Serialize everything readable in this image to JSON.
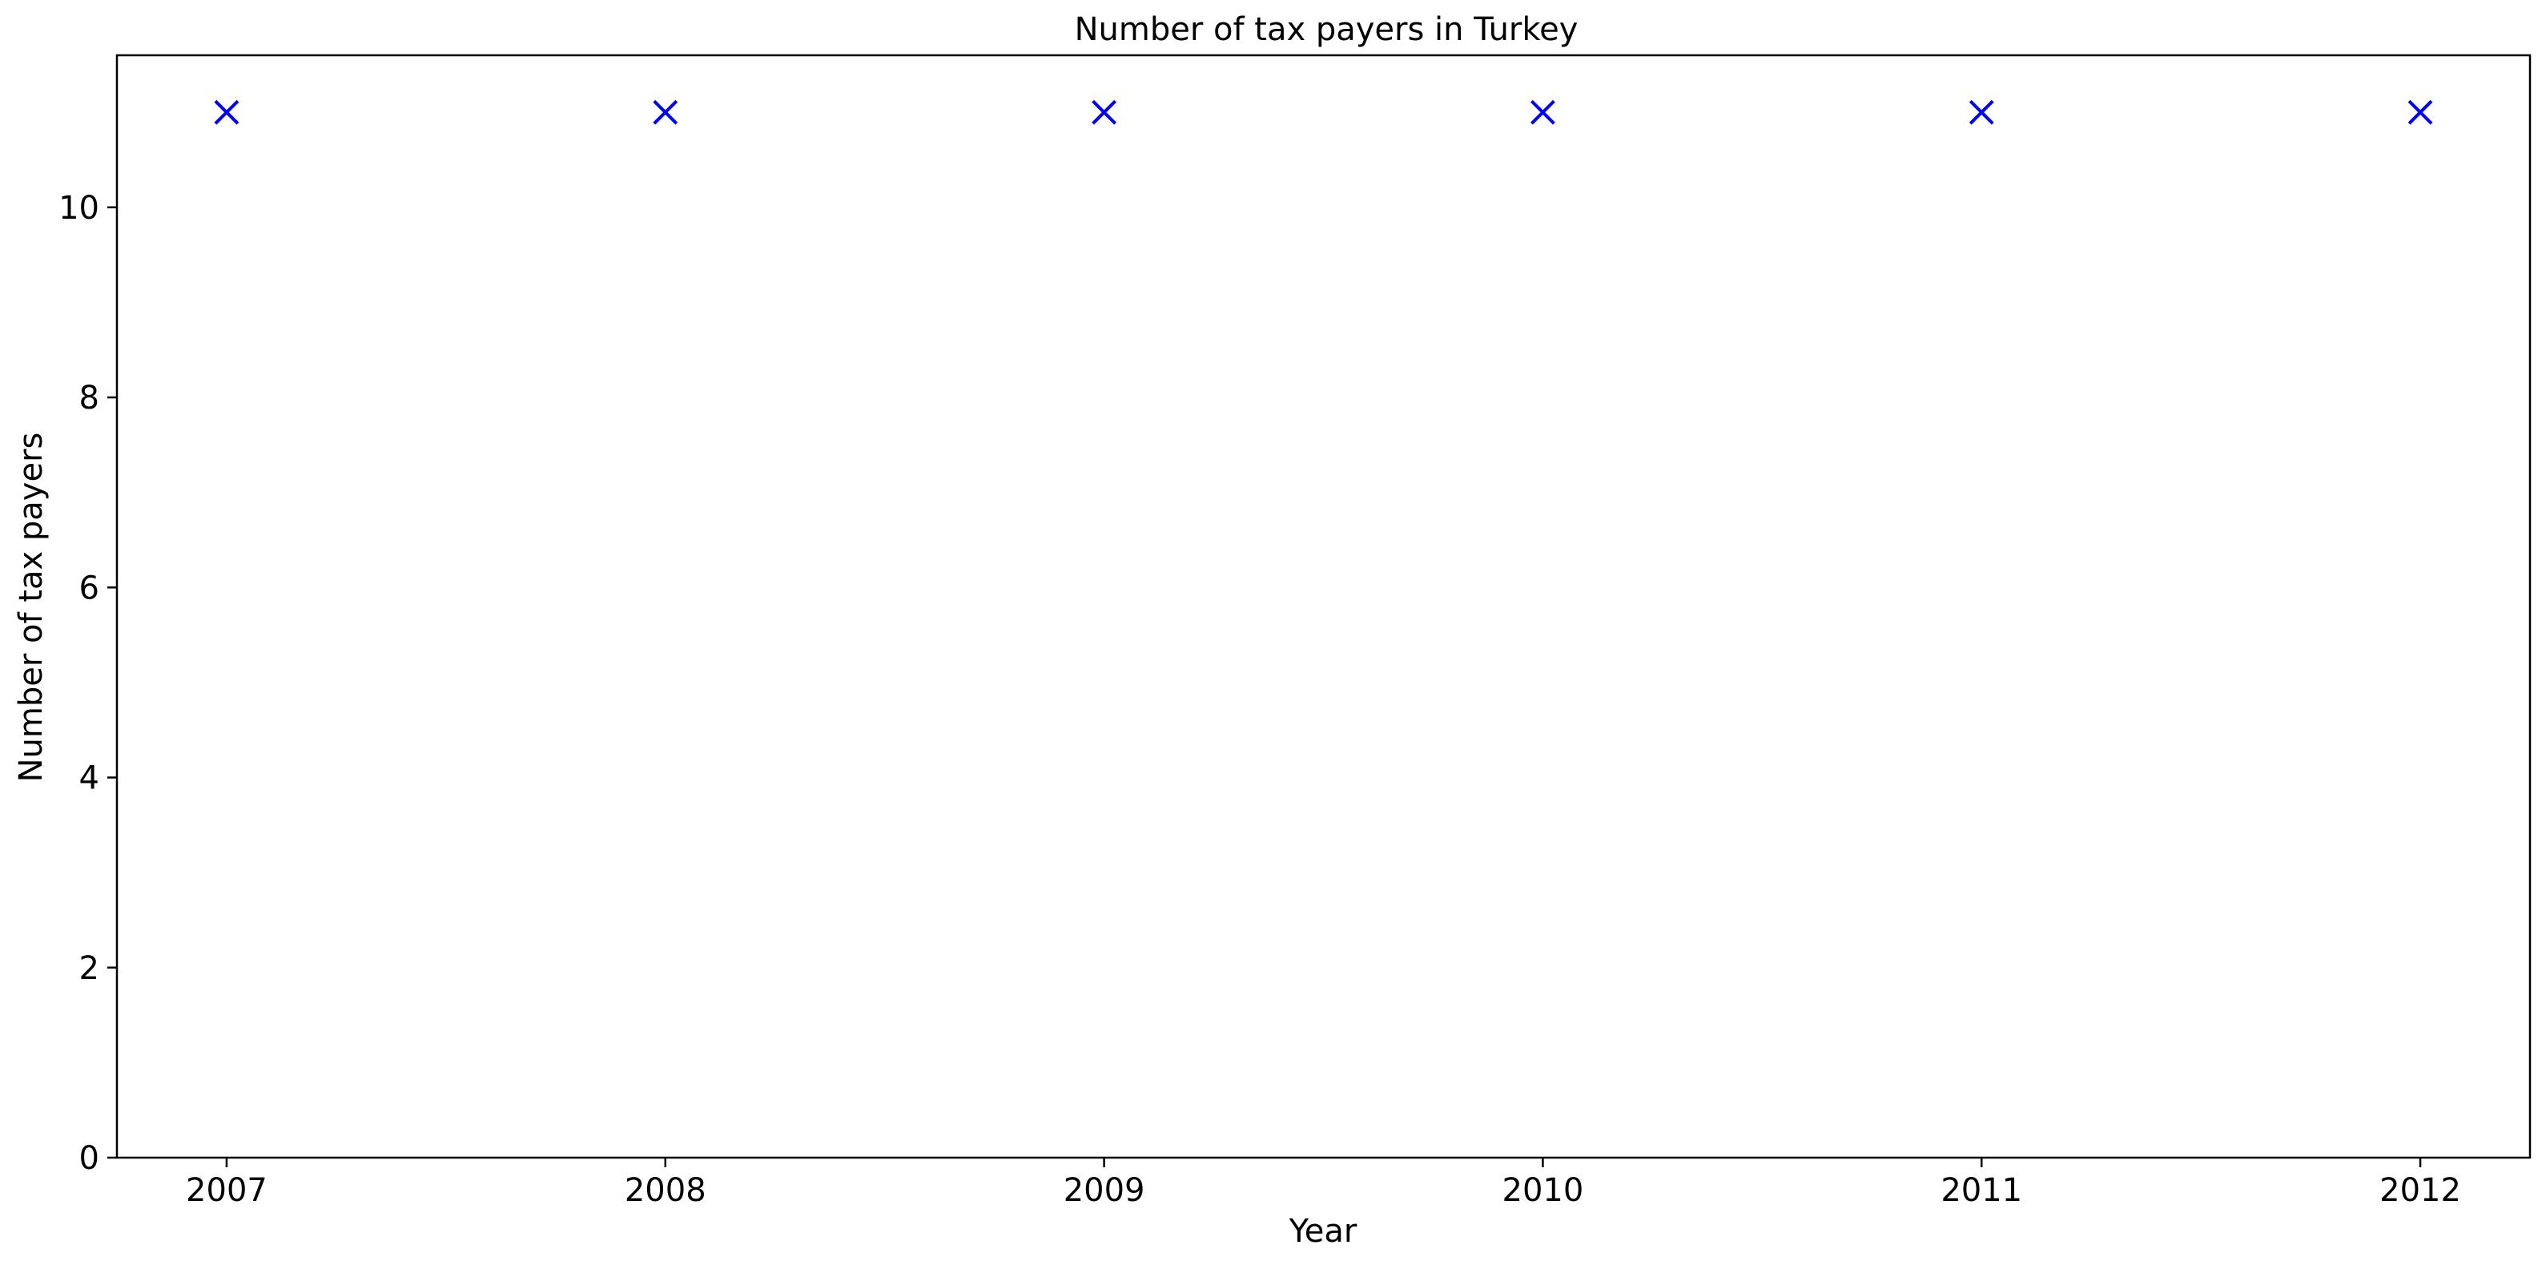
{
  "chart_data": {
    "type": "scatter",
    "title": "Number of tax payers in Turkey",
    "xlabel": "Year",
    "ylabel": "Number of tax payers",
    "x": [
      2007,
      2008,
      2009,
      2010,
      2011,
      2012
    ],
    "series": [
      {
        "values": [
          11,
          11,
          11,
          11,
          11,
          11
        ],
        "color": "#0000ff",
        "marker": "x"
      }
    ],
    "xticks": [
      "2007",
      "2008",
      "2009",
      "2010",
      "2011",
      "2012"
    ],
    "yticks": [
      "0",
      "2",
      "4",
      "6",
      "8",
      "10"
    ],
    "xlim": [
      2006.75,
      2012.25
    ],
    "ylim": [
      0,
      11.6
    ],
    "grid": false,
    "legend": "none"
  }
}
